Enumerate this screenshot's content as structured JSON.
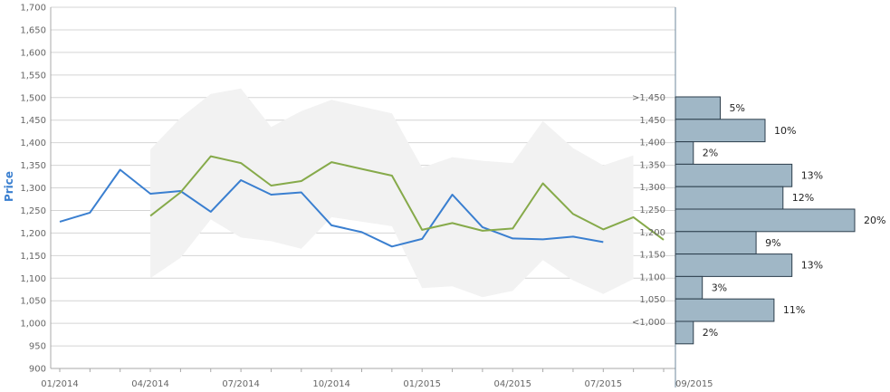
{
  "chart_data": {
    "type": "line",
    "ylabel": "Price",
    "ylim": [
      900,
      1700
    ],
    "y_ticks": [
      "900",
      "950",
      "1,000",
      "1,050",
      "1,100",
      "1,150",
      "1,200",
      "1,250",
      "1,300",
      "1,350",
      "1,400",
      "1,450",
      "1,500",
      "1,550",
      "1,600",
      "1,650",
      "1,700"
    ],
    "x_ticks": [
      "01/2014",
      "04/2014",
      "07/2014",
      "10/2014",
      "01/2015",
      "04/2015",
      "07/2015",
      "09/2015"
    ],
    "grid": true,
    "series": [
      {
        "color": "#3a7fd0",
        "x": [
          "2014-01",
          "2014-02",
          "2014-03",
          "2014-04",
          "2014-05",
          "2014-06",
          "2014-07",
          "2014-08",
          "2014-09",
          "2014-10",
          "2014-11",
          "2014-12",
          "2015-01",
          "2015-02",
          "2015-03",
          "2015-04",
          "2015-05",
          "2015-06",
          "2015-07"
        ],
        "values": [
          1225,
          1245,
          1340,
          1287,
          1293,
          1247,
          1317,
          1285,
          1290,
          1217,
          1202,
          1170,
          1187,
          1285,
          1213,
          1188,
          1186,
          1192,
          1180
        ]
      },
      {
        "color": "#86aa4a",
        "x": [
          "2014-04",
          "2014-05",
          "2014-06",
          "2014-07",
          "2014-08",
          "2014-09",
          "2014-10",
          "2014-11",
          "2014-12",
          "2015-01",
          "2015-02",
          "2015-03",
          "2015-04",
          "2015-05",
          "2015-06",
          "2015-07",
          "2015-08",
          "2015-09"
        ],
        "values": [
          1238,
          1290,
          1370,
          1355,
          1305,
          1315,
          1357,
          1342,
          1327,
          1207,
          1222,
          1205,
          1210,
          1310,
          1242,
          1208,
          1235,
          1185
        ]
      }
    ],
    "band": {
      "color": "#f2f2f2",
      "x": [
        "2014-04",
        "2014-05",
        "2014-06",
        "2014-07",
        "2014-08",
        "2014-09",
        "2014-10",
        "2014-11",
        "2014-12",
        "2015-01",
        "2015-02",
        "2015-03",
        "2015-04",
        "2015-05",
        "2015-06",
        "2015-07",
        "2015-08"
      ],
      "upper": [
        1385,
        1455,
        1508,
        1520,
        1435,
        1470,
        1495,
        1480,
        1465,
        1345,
        1368,
        1360,
        1355,
        1448,
        1388,
        1350,
        1372
      ],
      "lower": [
        1100,
        1145,
        1230,
        1190,
        1182,
        1165,
        1235,
        1225,
        1215,
        1078,
        1082,
        1058,
        1072,
        1140,
        1095,
        1065,
        1098
      ]
    },
    "histogram": {
      "color": "#a0b7c6",
      "stroke": "#2c3e4c",
      "bins": [
        {
          "label": ">1,450",
          "percent": 5,
          "text": "5%"
        },
        {
          "label": "1,450",
          "percent": 10,
          "text": "10%"
        },
        {
          "label": "1,400",
          "percent": 2,
          "text": "2%"
        },
        {
          "label": "1,350",
          "percent": 13,
          "text": "13%"
        },
        {
          "label": "1,300",
          "percent": 12,
          "text": "12%"
        },
        {
          "label": "1,250",
          "percent": 20,
          "text": "20%"
        },
        {
          "label": "1,200",
          "percent": 9,
          "text": "9%"
        },
        {
          "label": "1,150",
          "percent": 13,
          "text": "13%"
        },
        {
          "label": "1,100",
          "percent": 3,
          "text": "3%"
        },
        {
          "label": "1,050",
          "percent": 11,
          "text": "11%"
        },
        {
          "label": "<1,000",
          "percent": 2,
          "text": "2%"
        }
      ]
    }
  }
}
